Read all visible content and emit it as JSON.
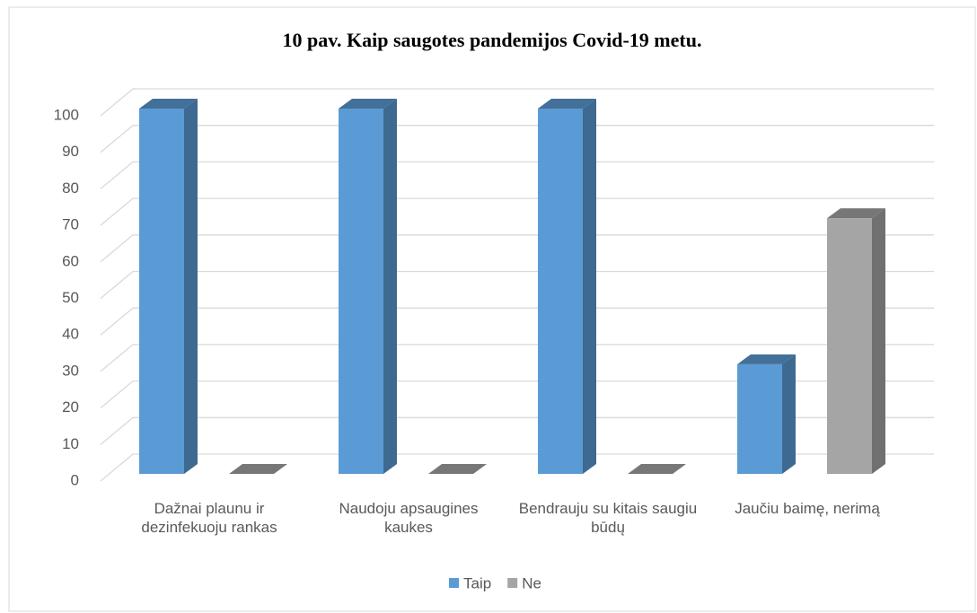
{
  "chart_data": {
    "type": "bar",
    "title": "10 pav. Kaip saugotes pandemijos Covid-19 metu.",
    "categories": [
      "Dažnai plaunu ir dezinfekuoju rankas",
      "Naudoju apsaugines kaukes",
      "Bendrauju su kitais saugiu būdų",
      "Jaučiu baimę, nerimą"
    ],
    "series": [
      {
        "name": "Taip",
        "color": "#5b9bd5",
        "values": [
          100,
          100,
          100,
          30
        ]
      },
      {
        "name": "Ne",
        "color": "#a5a5a5",
        "values": [
          0,
          0,
          0,
          70
        ]
      }
    ],
    "ylim": [
      0,
      100
    ],
    "yticks": [
      0,
      10,
      20,
      30,
      40,
      50,
      60,
      70,
      80,
      90,
      100
    ],
    "grid": true,
    "legend": "bottom"
  }
}
